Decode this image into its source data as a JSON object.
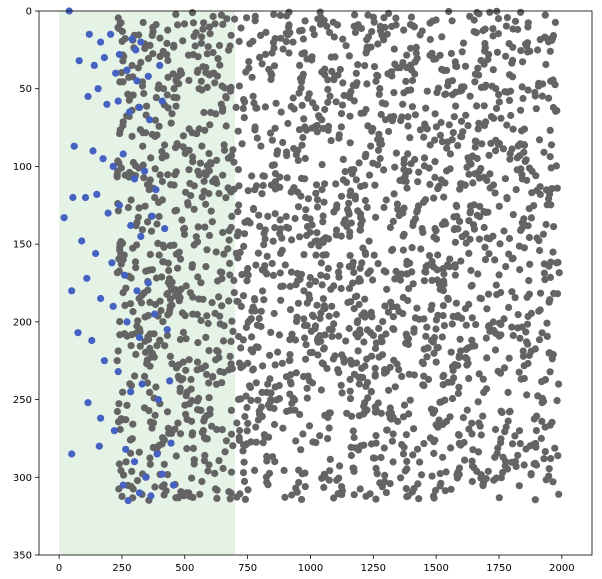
{
  "chart_data": {
    "type": "scatter",
    "title": "",
    "xlabel": "",
    "ylabel": "",
    "xlim": [
      -80,
      2120
    ],
    "ylim": [
      350,
      0
    ],
    "y_inverted": true,
    "grid": false,
    "x_ticks": [
      0,
      250,
      500,
      750,
      1000,
      1250,
      1500,
      1750,
      2000
    ],
    "y_ticks": [
      0,
      50,
      100,
      150,
      200,
      250,
      300,
      350
    ],
    "highlight_band": {
      "x_start": 0,
      "x_end": 700,
      "color": "#cfe8d2",
      "opacity": 0.55
    },
    "colors": {
      "blue_points": "#4562c2",
      "gray_points": "#646464",
      "axes": "#000000"
    },
    "series": [
      {
        "color": "#4562c2",
        "points": [
          [
            40,
            0
          ],
          [
            120,
            15
          ],
          [
            165,
            20
          ],
          [
            205,
            15
          ],
          [
            240,
            28
          ],
          [
            290,
            18
          ],
          [
            305,
            25
          ],
          [
            325,
            20
          ],
          [
            80,
            32
          ],
          [
            140,
            35
          ],
          [
            180,
            30
          ],
          [
            225,
            40
          ],
          [
            270,
            38
          ],
          [
            310,
            45
          ],
          [
            355,
            42
          ],
          [
            400,
            35
          ],
          [
            115,
            55
          ],
          [
            155,
            50
          ],
          [
            190,
            60
          ],
          [
            235,
            58
          ],
          [
            280,
            65
          ],
          [
            320,
            62
          ],
          [
            360,
            70
          ],
          [
            410,
            58
          ],
          [
            60,
            87
          ],
          [
            135,
            90
          ],
          [
            175,
            95
          ],
          [
            215,
            100
          ],
          [
            255,
            92
          ],
          [
            300,
            108
          ],
          [
            340,
            103
          ],
          [
            385,
            115
          ],
          [
            105,
            120
          ],
          [
            150,
            118
          ],
          [
            195,
            130
          ],
          [
            240,
            125
          ],
          [
            285,
            138
          ],
          [
            325,
            145
          ],
          [
            370,
            132
          ],
          [
            420,
            140
          ],
          [
            20,
            133
          ],
          [
            55,
            120
          ],
          [
            90,
            148
          ],
          [
            145,
            156
          ],
          [
            210,
            162
          ],
          [
            260,
            170
          ],
          [
            310,
            180
          ],
          [
            355,
            175
          ],
          [
            50,
            180
          ],
          [
            110,
            172
          ],
          [
            165,
            185
          ],
          [
            215,
            190
          ],
          [
            270,
            200
          ],
          [
            320,
            210
          ],
          [
            380,
            195
          ],
          [
            430,
            205
          ],
          [
            75,
            207
          ],
          [
            130,
            212
          ],
          [
            180,
            225
          ],
          [
            235,
            232
          ],
          [
            285,
            245
          ],
          [
            330,
            240
          ],
          [
            395,
            250
          ],
          [
            440,
            238
          ],
          [
            115,
            252
          ],
          [
            165,
            262
          ],
          [
            220,
            270
          ],
          [
            265,
            282
          ],
          [
            300,
            290
          ],
          [
            345,
            300
          ],
          [
            390,
            285
          ],
          [
            445,
            278
          ],
          [
            50,
            285
          ],
          [
            160,
            280
          ],
          [
            255,
            305
          ],
          [
            275,
            315
          ],
          [
            320,
            310
          ],
          [
            365,
            312
          ],
          [
            410,
            298
          ],
          [
            455,
            305
          ]
        ]
      },
      {
        "color": "#646464",
        "generated": true,
        "x_range": [
          230,
          1990
        ],
        "y_range": [
          0,
          315
        ],
        "count": 2200,
        "seed": 7
      }
    ]
  }
}
